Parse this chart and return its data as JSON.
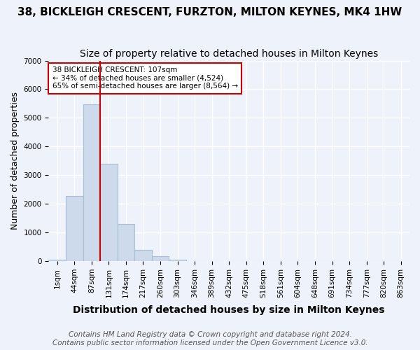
{
  "title": "38, BICKLEIGH CRESCENT, FURZTON, MILTON KEYNES, MK4 1HW",
  "subtitle": "Size of property relative to detached houses in Milton Keynes",
  "xlabel": "Distribution of detached houses by size in Milton Keynes",
  "ylabel": "Number of detached properties",
  "footer_line1": "Contains HM Land Registry data © Crown copyright and database right 2024.",
  "footer_line2": "Contains public sector information licensed under the Open Government Licence v3.0.",
  "annotation_line1": "38 BICKLEIGH CRESCENT: 107sqm",
  "annotation_line2": "← 34% of detached houses are smaller (4,524)",
  "annotation_line3": "65% of semi-detached houses are larger (8,564) →",
  "bar_values": [
    50,
    2280,
    5480,
    3400,
    1290,
    390,
    170,
    60,
    10,
    5,
    3,
    2,
    2,
    2,
    2,
    2,
    2,
    2,
    2,
    2,
    2
  ],
  "categories": [
    "1sqm",
    "44sqm",
    "87sqm",
    "131sqm",
    "174sqm",
    "217sqm",
    "260sqm",
    "303sqm",
    "346sqm",
    "389sqm",
    "432sqm",
    "475sqm",
    "518sqm",
    "561sqm",
    "604sqm",
    "648sqm",
    "691sqm",
    "734sqm",
    "777sqm",
    "820sqm",
    "863sqm"
  ],
  "bar_color": "#ccdaeb",
  "bar_edge_color": "#a8bfd4",
  "vline_color": "#cc0000",
  "vline_pos": 2.5,
  "ylim": [
    0,
    7000
  ],
  "yticks": [
    0,
    1000,
    2000,
    3000,
    4000,
    5000,
    6000,
    7000
  ],
  "background_color": "#eef2fa",
  "grid_color": "#ffffff",
  "annotation_box_color": "#ffffff",
  "annotation_box_edge_color": "#cc0000",
  "title_fontsize": 11,
  "subtitle_fontsize": 10,
  "xlabel_fontsize": 10,
  "ylabel_fontsize": 9,
  "tick_fontsize": 7.5,
  "footer_fontsize": 7.5
}
